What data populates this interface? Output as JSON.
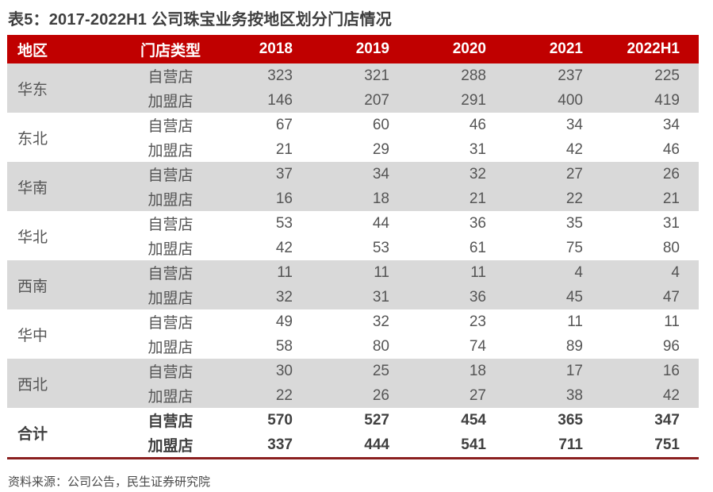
{
  "title": "表5：2017-2022H1 公司珠宝业务按地区划分门店情况",
  "source_note": "资料来源：公司公告，民生证券研究院",
  "colors": {
    "header_bg": "#c00000",
    "header_text": "#ffffff",
    "band_shaded": "#d9d9d9",
    "body_text": "#555555",
    "title_text": "#3f3f3f",
    "bottom_border": "#8a1f1f"
  },
  "table": {
    "headers": [
      "地区",
      "门店类型",
      "2018",
      "2019",
      "2020",
      "2021",
      "2022H1"
    ],
    "regions": [
      {
        "name": "华东",
        "shaded": true,
        "bold": false,
        "rows": [
          {
            "type": "自营店",
            "values": [
              323,
              321,
              288,
              237,
              225
            ]
          },
          {
            "type": "加盟店",
            "values": [
              146,
              207,
              291,
              400,
              419
            ]
          }
        ]
      },
      {
        "name": "东北",
        "shaded": false,
        "bold": false,
        "rows": [
          {
            "type": "自营店",
            "values": [
              67,
              60,
              46,
              34,
              34
            ]
          },
          {
            "type": "加盟店",
            "values": [
              21,
              29,
              31,
              42,
              46
            ]
          }
        ]
      },
      {
        "name": "华南",
        "shaded": true,
        "bold": false,
        "rows": [
          {
            "type": "自营店",
            "values": [
              37,
              34,
              32,
              27,
              26
            ]
          },
          {
            "type": "加盟店",
            "values": [
              16,
              18,
              21,
              22,
              21
            ]
          }
        ]
      },
      {
        "name": "华北",
        "shaded": false,
        "bold": false,
        "rows": [
          {
            "type": "自营店",
            "values": [
              53,
              44,
              36,
              35,
              31
            ]
          },
          {
            "type": "加盟店",
            "values": [
              42,
              53,
              61,
              75,
              80
            ]
          }
        ]
      },
      {
        "name": "西南",
        "shaded": true,
        "bold": false,
        "rows": [
          {
            "type": "自营店",
            "values": [
              11,
              11,
              11,
              4,
              4
            ]
          },
          {
            "type": "加盟店",
            "values": [
              32,
              31,
              36,
              45,
              47
            ]
          }
        ]
      },
      {
        "name": "华中",
        "shaded": false,
        "bold": false,
        "rows": [
          {
            "type": "自营店",
            "values": [
              49,
              32,
              23,
              11,
              11
            ]
          },
          {
            "type": "加盟店",
            "values": [
              58,
              80,
              74,
              89,
              96
            ]
          }
        ]
      },
      {
        "name": "西北",
        "shaded": true,
        "bold": false,
        "rows": [
          {
            "type": "自营店",
            "values": [
              30,
              25,
              18,
              17,
              16
            ]
          },
          {
            "type": "加盟店",
            "values": [
              22,
              26,
              27,
              38,
              42
            ]
          }
        ]
      },
      {
        "name": "合计",
        "shaded": false,
        "bold": true,
        "rows": [
          {
            "type": "自营店",
            "values": [
              570,
              527,
              454,
              365,
              347
            ]
          },
          {
            "type": "加盟店",
            "values": [
              337,
              444,
              541,
              711,
              751
            ]
          }
        ]
      }
    ]
  }
}
